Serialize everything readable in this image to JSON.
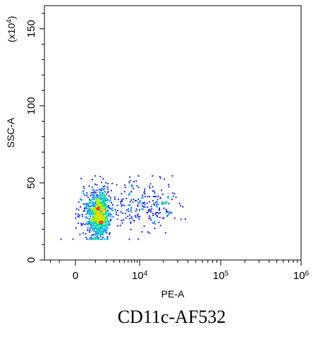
{
  "caption": "CD11c-AF532",
  "chart_data": {
    "type": "scatter",
    "plot_style": "density-colored flow cytometry dot plot",
    "xlabel": "PE-A",
    "ylabel": "SSC-A",
    "y_multiplier_label": {
      "prefix": "(x10",
      "exp": "4",
      "suffix": ")"
    },
    "x_scale": "biexponential",
    "y_scale": "linear",
    "x_ticks": [
      {
        "value": 0,
        "base": "0",
        "exp": ""
      },
      {
        "value": 10000,
        "base": "10",
        "exp": "4"
      },
      {
        "value": 100000,
        "base": "10",
        "exp": "5"
      },
      {
        "value": 1000000,
        "base": "10",
        "exp": "6"
      }
    ],
    "y_ticks": [
      0,
      50,
      100,
      150
    ],
    "ylim": [
      0,
      165
    ],
    "density_colors": [
      "#1428ff",
      "#00a0ff",
      "#00e0a0",
      "#b0f000",
      "#ffd000",
      "#ff4000"
    ],
    "populations": [
      {
        "name": "main cluster",
        "x_center": 1200,
        "y_center": 30,
        "x_spread": 1100,
        "y_spread": 8,
        "count": 900
      },
      {
        "name": "positive tail",
        "x_center": 9000,
        "y_center": 36,
        "x_spread": 12000,
        "y_spread": 8,
        "count": 260
      }
    ],
    "grid": false,
    "legend": "none"
  }
}
